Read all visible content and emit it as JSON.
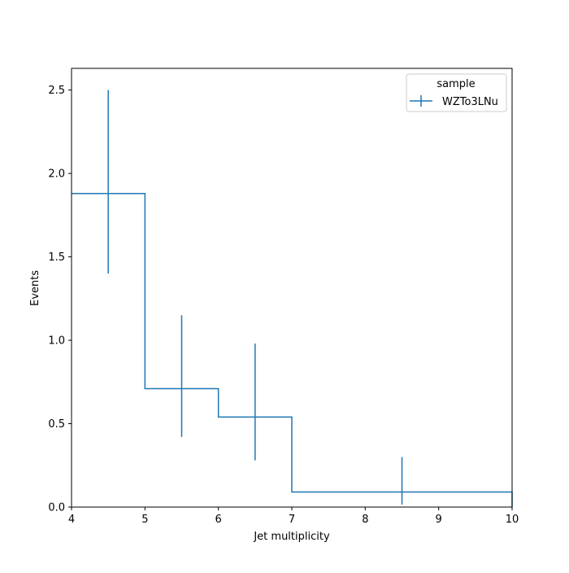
{
  "chart_data": {
    "type": "histogram",
    "xlabel": "Jet multiplicity",
    "ylabel": "Events",
    "xlim": [
      4,
      10
    ],
    "ylim": [
      0,
      2.63
    ],
    "xticks": [
      4,
      5,
      6,
      7,
      8,
      9,
      10
    ],
    "xtick_labels": [
      "4",
      "5",
      "6",
      "7",
      "8",
      "9",
      "10"
    ],
    "yticks": [
      0,
      0.5,
      1.0,
      1.5,
      2.0,
      2.5
    ],
    "ytick_labels": [
      "0.0",
      "0.5",
      "1.0",
      "1.5",
      "2.0",
      "2.5"
    ],
    "grid": false,
    "legend": {
      "title": "sample",
      "placement": "top-right"
    },
    "series": [
      {
        "name": "WZTo3LNu",
        "color": "#1f77b4",
        "bins": [
          {
            "lo": 4,
            "hi": 5,
            "value": 1.88,
            "err_lo": 1.4,
            "err_hi": 2.5
          },
          {
            "lo": 5,
            "hi": 6,
            "value": 0.71,
            "err_lo": 0.42,
            "err_hi": 1.15
          },
          {
            "lo": 6,
            "hi": 7,
            "value": 0.54,
            "err_lo": 0.28,
            "err_hi": 0.98
          },
          {
            "lo": 7,
            "hi": 10,
            "value": 0.09,
            "err_lo": 0.015,
            "err_hi": 0.3
          }
        ]
      }
    ]
  }
}
